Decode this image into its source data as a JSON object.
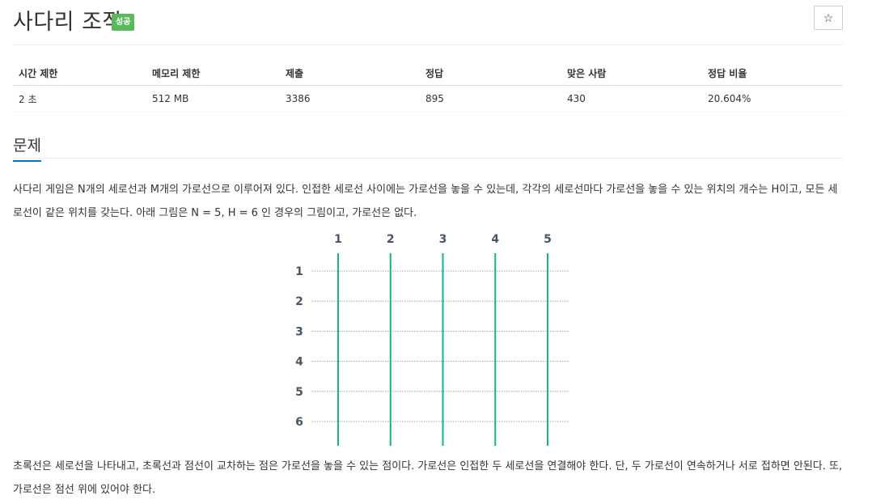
{
  "header": {
    "title": "사다리 조작",
    "badge": "성공",
    "star_icon": "☆"
  },
  "info_table": {
    "headers": [
      "시간 제한",
      "메모리 제한",
      "제출",
      "정답",
      "맞은 사람",
      "정답 비율"
    ],
    "row": [
      "2 초",
      "512 MB",
      "3386",
      "895",
      "430",
      "20.604%"
    ]
  },
  "section": {
    "title": "문제"
  },
  "problem": {
    "paragraph1": "사다리 게임은 N개의 세로선과 M개의 가로선으로 이루어져 있다. 인접한 세로선 사이에는 가로선을 놓을 수 있는데, 각각의 세로선마다 가로선을 놓을 수 있는 위치의 개수는 H이고, 모든 세로선이 같은 위치를 갖는다. 아래 그림은 N = 5, H = 6 인 경우의 그림이고, 가로선은 없다.",
    "paragraph2": "초록선은 세로선을 나타내고, 초록선과 점선이 교차하는 점은 가로선을 놓을 수 있는 점이다. 가로선은 인접한 두 세로선을 연결해야 한다. 단, 두 가로선이 연속하거나 서로 접하면 안된다. 또, 가로선은 점선 위에 있어야 한다."
  },
  "figure": {
    "column_labels": [
      "1",
      "2",
      "3",
      "4",
      "5"
    ],
    "row_labels": [
      "1",
      "2",
      "3",
      "4",
      "5",
      "6"
    ],
    "vertical_line_color": "#16b38c",
    "dotted_line_color": "#a0a0a0"
  }
}
